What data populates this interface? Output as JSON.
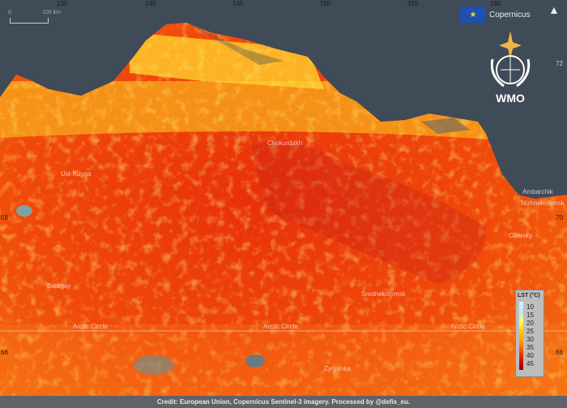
{
  "map": {
    "longitude_ticks": [
      "135",
      "140",
      "145",
      "150",
      "155",
      "160"
    ],
    "latitude_ticks": [
      "72",
      "68",
      "66",
      "70",
      "66"
    ],
    "scale_bar": {
      "start": "0",
      "end": "100 km"
    },
    "places": [
      "Chokurdakh",
      "Ust-Kuyga",
      "Batagay",
      "Srednekolymsk",
      "Zyryanka",
      "Ambarchik",
      "Nizhnekolymsk",
      "Chersky",
      "Arctic Circle",
      "Arctic Circle",
      "Arctic Circle"
    ],
    "colors": {
      "ocean": "#3f4b56",
      "hot": "#e01000",
      "warm": "#ff6a00",
      "cool": "#ffd000",
      "cold": "#bfe8ea"
    }
  },
  "legend": {
    "title": "LST (°C)",
    "values": [
      "10",
      "15",
      "20",
      "25",
      "30",
      "35",
      "40",
      "45"
    ]
  },
  "logos": {
    "eu": "★",
    "copernicus": "Copernicus",
    "wmo": "WMO",
    "north_arrow": "north-arrow-icon"
  },
  "credit": "Credit: European Union, Copernicus Sentinel-3 imagery. Processed by @defis_eu."
}
